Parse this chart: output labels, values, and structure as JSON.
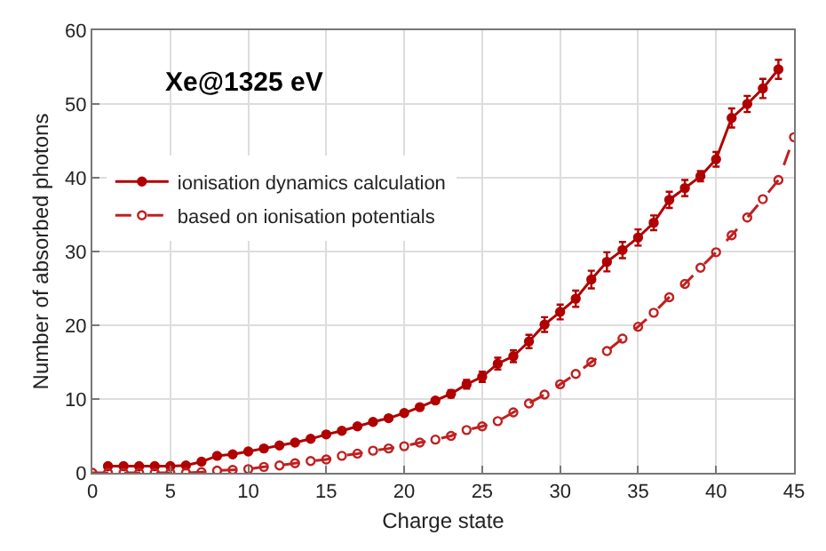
{
  "chart_data": {
    "type": "line",
    "title": "Xe@1325 eV",
    "xlabel": "Charge state",
    "ylabel": "Number of absorbed photons",
    "xlim": [
      0,
      45
    ],
    "xticks": [
      0,
      5,
      10,
      15,
      20,
      25,
      30,
      35,
      40,
      45
    ],
    "ylim": [
      0,
      60
    ],
    "yticks": [
      0,
      10,
      20,
      30,
      40,
      50,
      60
    ],
    "grid": true,
    "legend": "left",
    "series": [
      {
        "name": "ionisation dynamics calculation",
        "color": "#b00000",
        "line_style": "solid",
        "marker": "circle",
        "x": [
          1,
          2,
          3,
          4,
          5,
          6,
          7,
          8,
          9,
          10,
          11,
          12,
          13,
          14,
          15,
          16,
          17,
          18,
          19,
          20,
          21,
          22,
          23,
          24,
          25,
          26,
          27,
          28,
          29,
          30,
          31,
          32,
          33,
          34,
          35,
          36,
          37,
          38,
          39,
          40,
          41,
          42,
          43,
          44
        ],
        "values": [
          0.9,
          0.9,
          0.9,
          0.9,
          0.9,
          1.0,
          1.5,
          2.3,
          2.5,
          2.9,
          3.3,
          3.7,
          4.1,
          4.6,
          5.2,
          5.7,
          6.3,
          6.9,
          7.4,
          8.1,
          8.9,
          9.8,
          10.7,
          12.0,
          13.0,
          14.8,
          15.8,
          17.8,
          20.1,
          21.8,
          23.6,
          26.2,
          28.6,
          30.2,
          31.9,
          33.9,
          37.0,
          38.6,
          40.2,
          42.5,
          48.1,
          50.0,
          52.1,
          54.7
        ],
        "errors": [
          null,
          null,
          null,
          null,
          null,
          null,
          null,
          null,
          null,
          null,
          null,
          null,
          null,
          null,
          null,
          null,
          null,
          null,
          null,
          null,
          null,
          null,
          0.5,
          0.6,
          0.7,
          0.8,
          0.8,
          0.9,
          1.0,
          1.0,
          1.1,
          1.2,
          1.3,
          1.1,
          1.1,
          1.0,
          1.1,
          1.1,
          0.7,
          1.0,
          1.3,
          1.1,
          1.3,
          1.3
        ]
      },
      {
        "name": "based on ionisation potentials",
        "color": "#c02020",
        "line_style": "dashed",
        "marker": "circle-open",
        "x": [
          0,
          1,
          2,
          3,
          4,
          5,
          6,
          7,
          8,
          9,
          10,
          11,
          12,
          13,
          14,
          15,
          16,
          17,
          18,
          19,
          20,
          21,
          22,
          23,
          24,
          25,
          26,
          27,
          28,
          29,
          30,
          31,
          32,
          33,
          34,
          35,
          36,
          37,
          38,
          39,
          40,
          41,
          42,
          43,
          44,
          45
        ],
        "values": [
          0,
          0,
          0,
          0,
          0,
          0,
          0,
          0.1,
          0.3,
          0.4,
          0.5,
          0.8,
          1.0,
          1.3,
          1.6,
          1.8,
          2.3,
          2.6,
          3.0,
          3.3,
          3.6,
          4.1,
          4.5,
          5.0,
          5.8,
          6.3,
          7.0,
          8.2,
          9.4,
          10.6,
          12.0,
          13.4,
          15.0,
          16.5,
          18.2,
          19.8,
          21.7,
          23.8,
          25.6,
          27.8,
          29.9,
          32.2,
          34.6,
          37.1,
          39.7,
          45.5
        ]
      }
    ]
  }
}
